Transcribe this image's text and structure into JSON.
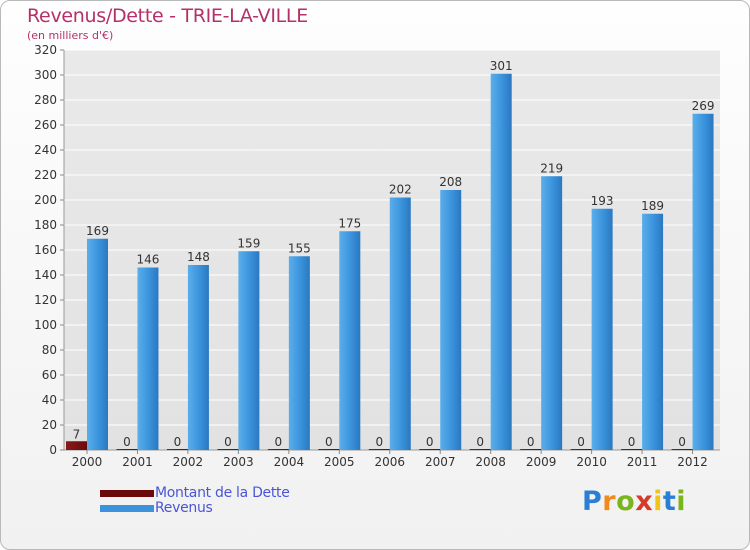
{
  "colors": {
    "title": "#b5306a",
    "dette": "#6b0a0a",
    "revenus": "#3a93dc",
    "legend_text": "#4a55d6",
    "grid": "#ffffff",
    "axis_text": "#333333"
  },
  "chart_data": {
    "type": "bar",
    "title": "Revenus/Dette - TRIE-LA-VILLE",
    "subtitle": "(en milliers d'€)",
    "xlabel": "",
    "ylabel": "",
    "ylim": [
      0,
      320
    ],
    "yticks": [
      0,
      20,
      40,
      60,
      80,
      100,
      120,
      140,
      160,
      180,
      200,
      220,
      240,
      260,
      280,
      300,
      320
    ],
    "categories": [
      "2000",
      "2001",
      "2002",
      "2003",
      "2004",
      "2005",
      "2006",
      "2007",
      "2008",
      "2009",
      "2010",
      "2011",
      "2012"
    ],
    "series": [
      {
        "name": "Montant de la Dette",
        "values": [
          7,
          0,
          0,
          0,
          0,
          0,
          0,
          0,
          0,
          0,
          0,
          0,
          0
        ]
      },
      {
        "name": "Revenus",
        "values": [
          169,
          146,
          148,
          159,
          155,
          175,
          202,
          208,
          301,
          219,
          193,
          189,
          269
        ]
      }
    ],
    "legend_position": "bottom-left"
  },
  "logo": {
    "letters": [
      "P",
      "r",
      "o",
      "x",
      "i",
      "t",
      "i"
    ],
    "letter_colors": [
      "#2a7fd4",
      "#f08a1c",
      "#7ab51d",
      "#d63a2a",
      "#f0c419",
      "#2a7fd4",
      "#7ab51d"
    ]
  }
}
